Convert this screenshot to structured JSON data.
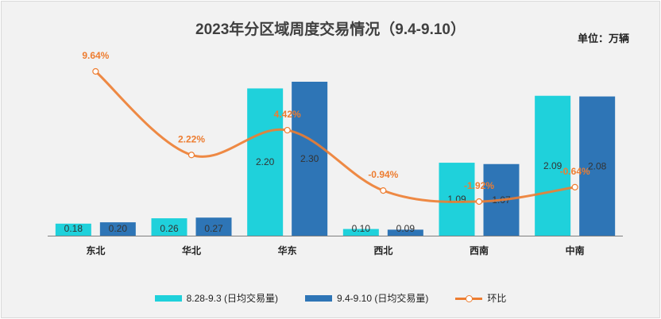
{
  "chart_data": {
    "type": "bar",
    "title": "2023年分区域周度交易情况（9.4-9.10）",
    "unit_label": "单位：万辆",
    "categories": [
      "东北",
      "华北",
      "华东",
      "西北",
      "西南",
      "中南"
    ],
    "series": [
      {
        "name": "8.28-9.3 (日均交易量)",
        "type": "bar",
        "color": "#1FD1DB",
        "values": [
          0.18,
          0.26,
          2.2,
          0.1,
          1.09,
          2.09
        ]
      },
      {
        "name": "9.4-9.10 (日均交易量)",
        "type": "bar",
        "color": "#2E75B6",
        "values": [
          0.2,
          0.27,
          2.3,
          0.09,
          1.07,
          2.08
        ]
      },
      {
        "name": "环比",
        "type": "line",
        "color": "#ED7D31",
        "values": [
          9.64,
          2.22,
          4.42,
          -0.94,
          -1.92,
          -0.64
        ],
        "labels": [
          "9.64%",
          "2.22%",
          "4.42%",
          "-0.94%",
          "-1.92%",
          "-0.64%"
        ]
      }
    ],
    "bar_ylim": [
      0,
      2.5
    ],
    "line_ylim": [
      -4,
      12
    ],
    "grid": false,
    "legend_position": "bottom"
  }
}
